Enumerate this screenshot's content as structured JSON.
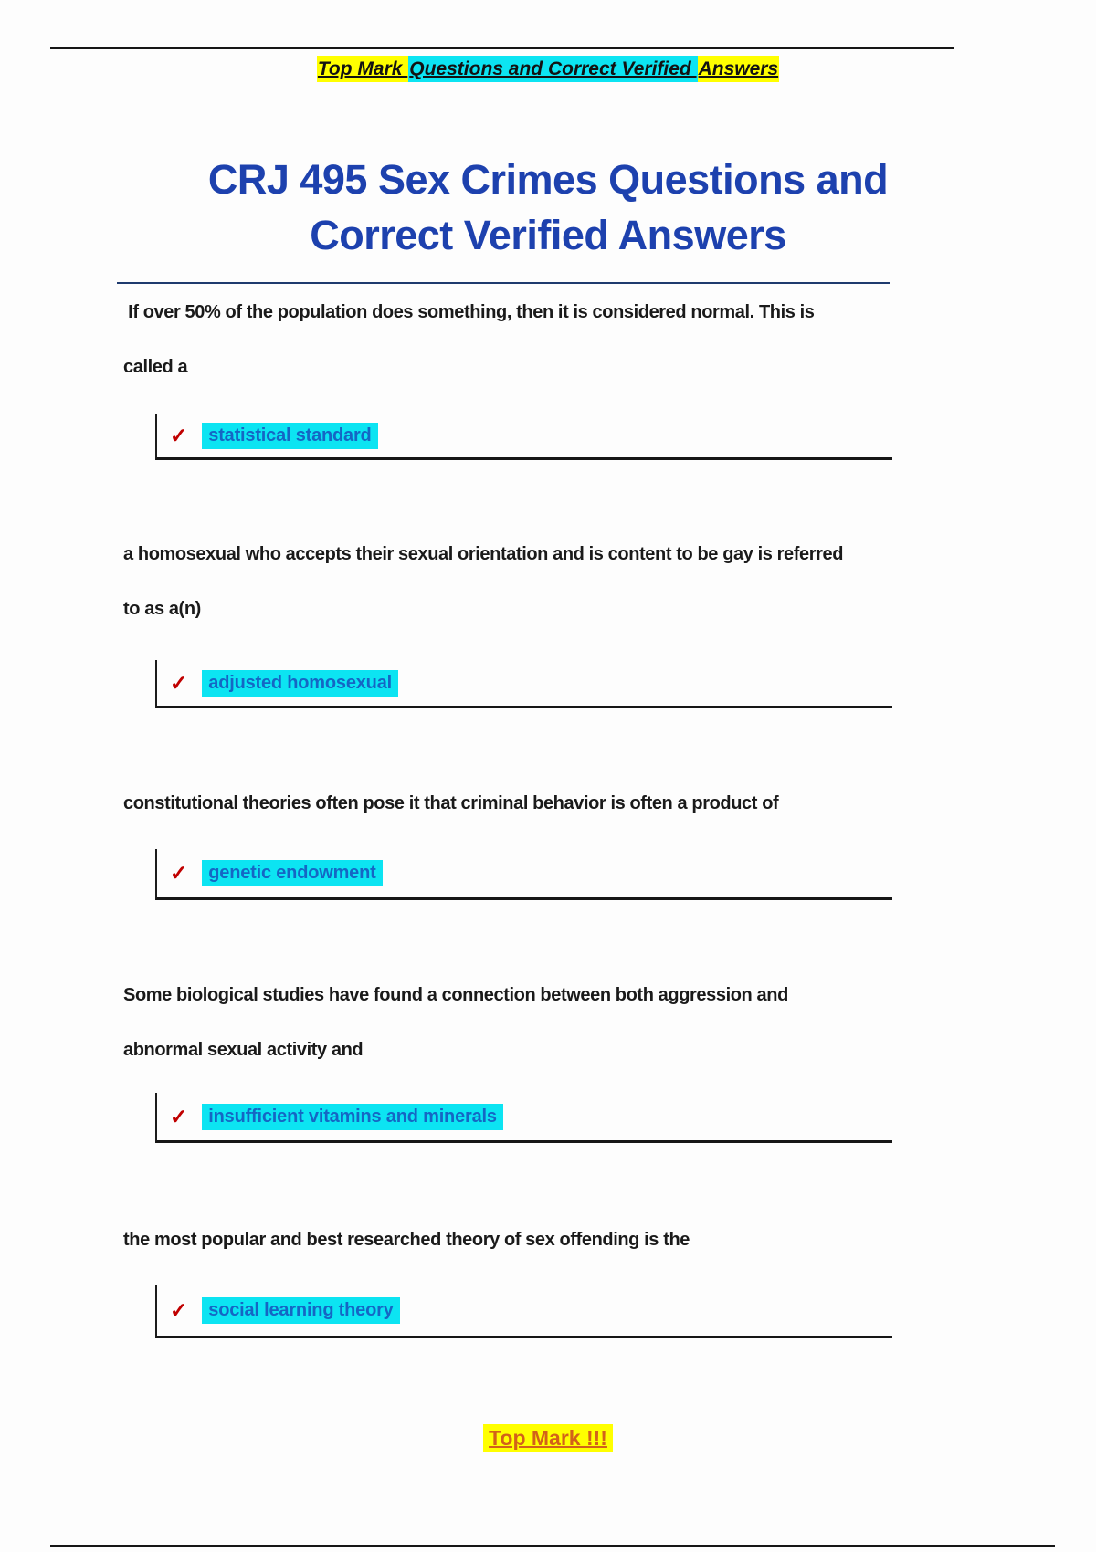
{
  "document": {
    "header": {
      "brand": "Top Mark ",
      "middle": "Questions and Correct Verified ",
      "tail": "Answers"
    },
    "title": {
      "line1": "CRJ 495 Sex Crimes Questions and",
      "line2": "Correct Verified Answers"
    },
    "qa": [
      {
        "question_lines": [
          " If over 50% of the population does something, then it is considered normal. This is",
          "called a"
        ],
        "answer": "statistical standard"
      },
      {
        "question_lines": [
          "a homosexual who accepts their sexual orientation and is content to be gay is referred",
          "to as a(n)"
        ],
        "answer": "adjusted homosexual"
      },
      {
        "question_lines": [
          "constitutional theories often pose it that criminal behavior is often a product of"
        ],
        "answer": "genetic endowment"
      },
      {
        "question_lines": [
          "Some biological studies have found a connection between both aggression and",
          "abnormal sexual activity and"
        ],
        "answer": "insufficient vitamins and minerals"
      },
      {
        "question_lines": [
          "the most popular and best researched theory of sex offending is the"
        ],
        "answer": "social learning theory"
      }
    ],
    "footer": {
      "brand": "Top Mark !!!"
    },
    "icons": {
      "check": "✓"
    },
    "colors": {
      "highlight_yellow": "#ffff00",
      "highlight_cyan": "#0ce4f2",
      "title_blue": "#1d41ae",
      "answer_blue": "#1566c4",
      "check_red": "#c00000",
      "footer_orange": "#d2611a",
      "divider_navy": "#1e3a6e"
    }
  }
}
